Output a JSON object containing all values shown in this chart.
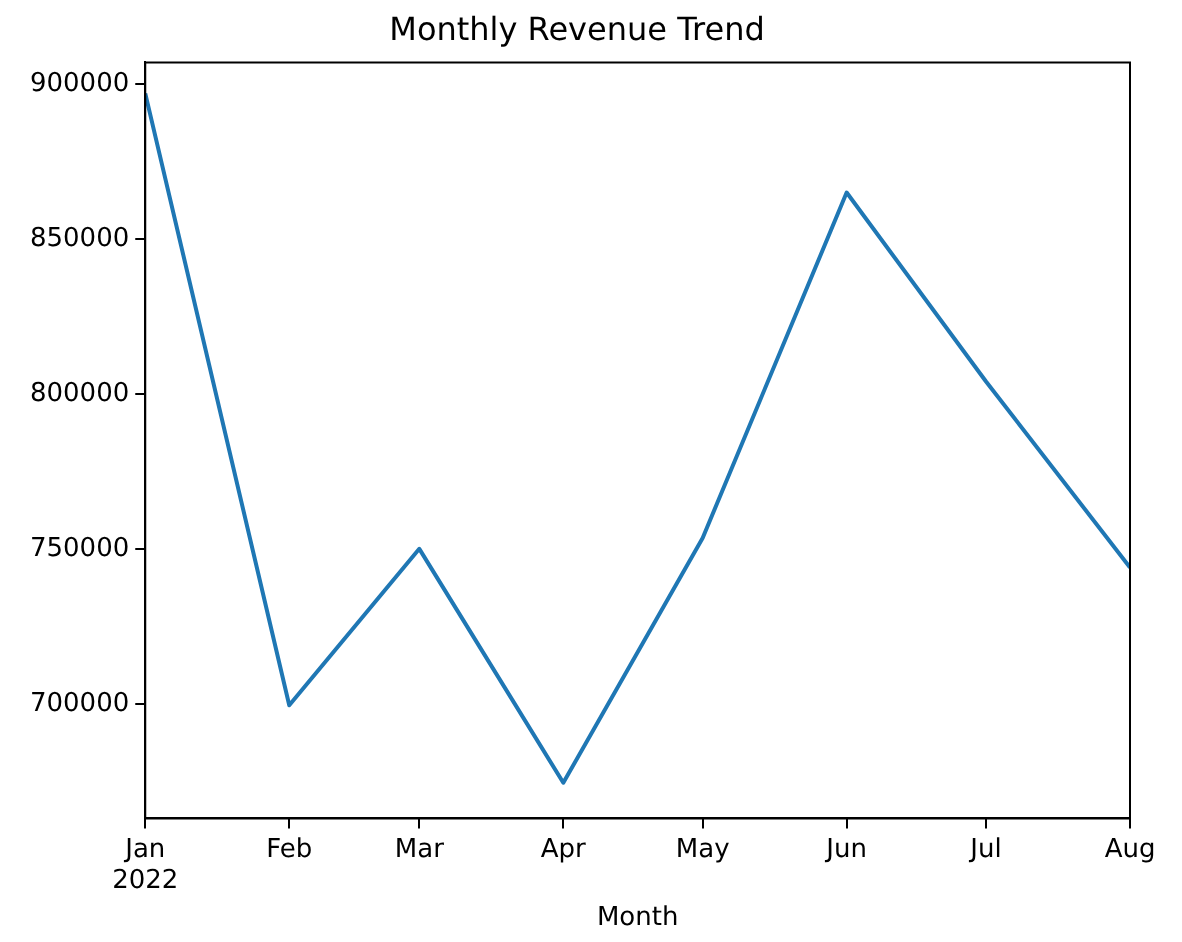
{
  "chart_data": {
    "type": "line",
    "title": "Monthly Revenue Trend",
    "xlabel": "Month",
    "x": [
      "2022-01",
      "2022-02",
      "2022-03",
      "2022-04",
      "2022-05",
      "2022-06",
      "2022-07",
      "2022-08"
    ],
    "series": [
      {
        "color": "#1f77b4",
        "values": [
          897000,
          699500,
          750000,
          674500,
          753500,
          865000,
          804000,
          744000
        ]
      }
    ],
    "xlim": [
      "2022-01",
      "2022-08"
    ],
    "xticks": [
      {
        "value": "2022-01",
        "label": "Jan\n2022"
      },
      {
        "value": "2022-02",
        "label": "Feb"
      },
      {
        "value": "2022-03",
        "label": "Mar"
      },
      {
        "value": "2022-04",
        "label": "Apr"
      },
      {
        "value": "2022-05",
        "label": "May"
      },
      {
        "value": "2022-06",
        "label": "Jun"
      },
      {
        "value": "2022-07",
        "label": "Jul"
      },
      {
        "value": "2022-08",
        "label": "Aug"
      }
    ],
    "ylim": [
      663000,
      907000
    ],
    "yticks": [
      700000,
      750000,
      800000,
      850000,
      900000
    ],
    "grid": false,
    "legend": false,
    "marker": "none",
    "line_style": "solid"
  }
}
